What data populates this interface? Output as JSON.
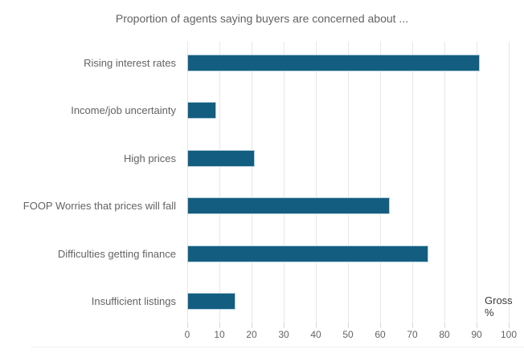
{
  "chart_data": {
    "type": "bar",
    "orientation": "horizontal",
    "title": "Proportion of agents saying buyers are concerned about ...",
    "categories": [
      "Rising interest rates",
      "Income/job uncertainty",
      "High prices",
      "FOOP Worries that prices will fall",
      "Difficulties getting finance",
      "Insufficient listings"
    ],
    "values": [
      91,
      9,
      21,
      63,
      75,
      15
    ],
    "xlabel": "Gross %",
    "ylabel": "",
    "xlim": [
      0,
      100
    ],
    "xticks": [
      0,
      10,
      20,
      30,
      40,
      50,
      60,
      70,
      80,
      90,
      100
    ],
    "grid": true,
    "legend": false,
    "colors": {
      "bar": "#135e80",
      "bar_border": "#b3cedd",
      "gridline": "#e7e7e7",
      "tick": "#d9d9d9",
      "text": "#636363",
      "unit_label": "#3a3a3a"
    }
  }
}
